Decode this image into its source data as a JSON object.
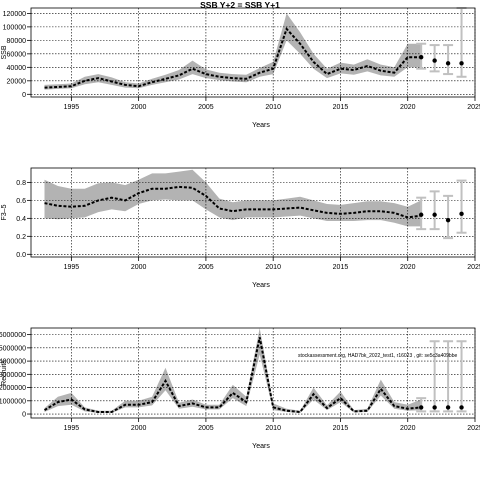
{
  "chart_data": [
    {
      "type": "line",
      "title": "SSB Y+2 = SSB Y+1",
      "xlabel": "Years",
      "ylabel": "SSB",
      "xlim": [
        1992,
        2025
      ],
      "ylim": [
        -4000,
        128000
      ],
      "xticks": [
        1995,
        2000,
        2005,
        2010,
        2015,
        2020,
        2025
      ],
      "yticks": [
        0,
        20000,
        40000,
        60000,
        80000,
        100000,
        120000
      ],
      "ytick_labels": [
        "0",
        "20000",
        "40000",
        "60000",
        "80000",
        "100000",
        "120000"
      ],
      "grid": true,
      "colors": {
        "band": "#b3b3b3",
        "line": "#000000",
        "forecast": "#c0c0c0"
      },
      "series": [
        {
          "x": [
            1993,
            1994,
            1995,
            1996,
            1997,
            1998,
            1999,
            2000,
            2001,
            2002,
            2003,
            2004,
            2005,
            2006,
            2007,
            2008,
            2009,
            2010,
            2011,
            2012,
            2013,
            2014,
            2015,
            2016,
            2017,
            2018,
            2019,
            2020,
            2021
          ],
          "values": [
            10000,
            11000,
            12000,
            20000,
            24000,
            19000,
            14000,
            12000,
            18000,
            23000,
            28000,
            38000,
            30000,
            26000,
            24000,
            23000,
            32000,
            38000,
            97000,
            75000,
            48000,
            30000,
            38000,
            36000,
            42000,
            35000,
            32000,
            55000,
            55000
          ],
          "lower": [
            7000,
            8000,
            9000,
            15000,
            18000,
            14000,
            10000,
            9000,
            14000,
            18000,
            22000,
            30000,
            24000,
            21000,
            19000,
            18000,
            26000,
            30000,
            80000,
            60000,
            38000,
            24000,
            31000,
            29000,
            34000,
            28000,
            26000,
            40000,
            40000
          ],
          "upper": [
            14000,
            15000,
            16000,
            26000,
            30000,
            25000,
            18000,
            16000,
            23000,
            29000,
            36000,
            50000,
            37000,
            32000,
            30000,
            29000,
            39000,
            48000,
            120000,
            92000,
            60000,
            38000,
            47000,
            44000,
            52000,
            44000,
            40000,
            75000,
            75000
          ]
        }
      ],
      "forecast": {
        "x": [
          2021,
          2022,
          2023,
          2024
        ],
        "values": [
          55000,
          50000,
          46000,
          46000
        ],
        "lower": [
          38000,
          34000,
          30000,
          26000
        ],
        "upper": [
          75000,
          73000,
          73000,
          128000
        ]
      }
    },
    {
      "type": "line",
      "title": "",
      "xlabel": "Years",
      "ylabel": "F3–5",
      "xlim": [
        1992,
        2025
      ],
      "ylim": [
        -0.03,
        0.96
      ],
      "xticks": [
        1995,
        2000,
        2005,
        2010,
        2015,
        2020,
        2025
      ],
      "yticks": [
        0,
        0.2,
        0.4,
        0.6,
        0.8
      ],
      "ytick_labels": [
        "0.0",
        "0.2",
        "0.4",
        "0.6",
        "0.8"
      ],
      "grid": true,
      "colors": {
        "band": "#b3b3b3",
        "line": "#000000",
        "forecast": "#c0c0c0"
      },
      "series": [
        {
          "x": [
            1993,
            1994,
            1995,
            1996,
            1997,
            1998,
            1999,
            2000,
            2001,
            2002,
            2003,
            2004,
            2005,
            2006,
            2007,
            2008,
            2009,
            2010,
            2011,
            2012,
            2013,
            2014,
            2015,
            2016,
            2017,
            2018,
            2019,
            2020,
            2021
          ],
          "values": [
            0.57,
            0.54,
            0.53,
            0.54,
            0.6,
            0.63,
            0.6,
            0.68,
            0.73,
            0.73,
            0.75,
            0.74,
            0.65,
            0.51,
            0.48,
            0.5,
            0.5,
            0.5,
            0.51,
            0.52,
            0.49,
            0.46,
            0.45,
            0.46,
            0.48,
            0.48,
            0.46,
            0.41,
            0.43
          ],
          "lower": [
            0.4,
            0.39,
            0.4,
            0.41,
            0.47,
            0.5,
            0.48,
            0.56,
            0.6,
            0.61,
            0.6,
            0.6,
            0.5,
            0.41,
            0.38,
            0.41,
            0.41,
            0.41,
            0.42,
            0.43,
            0.4,
            0.37,
            0.37,
            0.37,
            0.38,
            0.38,
            0.35,
            0.31,
            0.31
          ],
          "upper": [
            0.83,
            0.76,
            0.73,
            0.73,
            0.79,
            0.8,
            0.77,
            0.83,
            0.9,
            0.9,
            0.92,
            0.94,
            0.8,
            0.62,
            0.58,
            0.6,
            0.6,
            0.6,
            0.62,
            0.64,
            0.6,
            0.56,
            0.55,
            0.57,
            0.59,
            0.59,
            0.57,
            0.53,
            0.6
          ]
        }
      ],
      "forecast": {
        "x": [
          2021,
          2022,
          2023,
          2024
        ],
        "values": [
          0.44,
          0.44,
          0.38,
          0.45
        ],
        "lower": [
          0.28,
          0.28,
          0.18,
          0.24
        ],
        "upper": [
          0.63,
          0.7,
          0.65,
          0.82
        ]
      }
    },
    {
      "type": "line",
      "title": "",
      "xlabel": "Years",
      "ylabel": "Recruits",
      "xlim": [
        1992,
        2025
      ],
      "ylim": [
        -300000,
        6500000
      ],
      "xticks": [
        1995,
        2000,
        2005,
        2010,
        2015,
        2020,
        2025
      ],
      "yticks": [
        0,
        1000000,
        2000000,
        3000000,
        4000000,
        5000000,
        6000000
      ],
      "ytick_labels": [
        "0",
        "1000000",
        "2000000",
        "3000000",
        "4000000",
        "5000000",
        "6000000"
      ],
      "grid": true,
      "annotation": "stockassessment.org, HAD7bk_2022_test1, r16023 , git: se5c3a409bbe",
      "colors": {
        "band": "#b3b3b3",
        "line": "#000000",
        "forecast": "#c0c0c0"
      },
      "series": [
        {
          "x": [
            1993,
            1994,
            1995,
            1996,
            1997,
            1998,
            1999,
            2000,
            2001,
            2002,
            2003,
            2004,
            2005,
            2006,
            2007,
            2008,
            2009,
            2010,
            2011,
            2012,
            2013,
            2014,
            2015,
            2016,
            2017,
            2018,
            2019,
            2020,
            2021
          ],
          "values": [
            300000,
            900000,
            1100000,
            350000,
            150000,
            150000,
            700000,
            700000,
            900000,
            2500000,
            600000,
            800000,
            500000,
            500000,
            1600000,
            900000,
            5800000,
            500000,
            250000,
            150000,
            1500000,
            450000,
            1200000,
            200000,
            250000,
            1900000,
            600000,
            400000,
            500000
          ],
          "lower": [
            150000,
            600000,
            700000,
            200000,
            80000,
            80000,
            500000,
            500000,
            650000,
            1800000,
            400000,
            550000,
            350000,
            350000,
            1200000,
            600000,
            4500000,
            300000,
            150000,
            80000,
            1100000,
            300000,
            900000,
            120000,
            150000,
            1400000,
            400000,
            250000,
            300000
          ],
          "upper": [
            450000,
            1300000,
            1600000,
            500000,
            250000,
            250000,
            1000000,
            1000000,
            1300000,
            3500000,
            850000,
            1100000,
            700000,
            700000,
            2200000,
            1300000,
            7200000,
            800000,
            400000,
            250000,
            2000000,
            650000,
            1700000,
            300000,
            400000,
            2600000,
            900000,
            700000,
            1100000
          ]
        }
      ],
      "forecast": {
        "x": [
          2021,
          2022,
          2023,
          2024
        ],
        "values": [
          500000,
          500000,
          500000,
          500000
        ],
        "lower": [
          200000,
          200000,
          200000,
          200000
        ],
        "upper": [
          1200000,
          5500000,
          5500000,
          5500000
        ]
      }
    }
  ]
}
